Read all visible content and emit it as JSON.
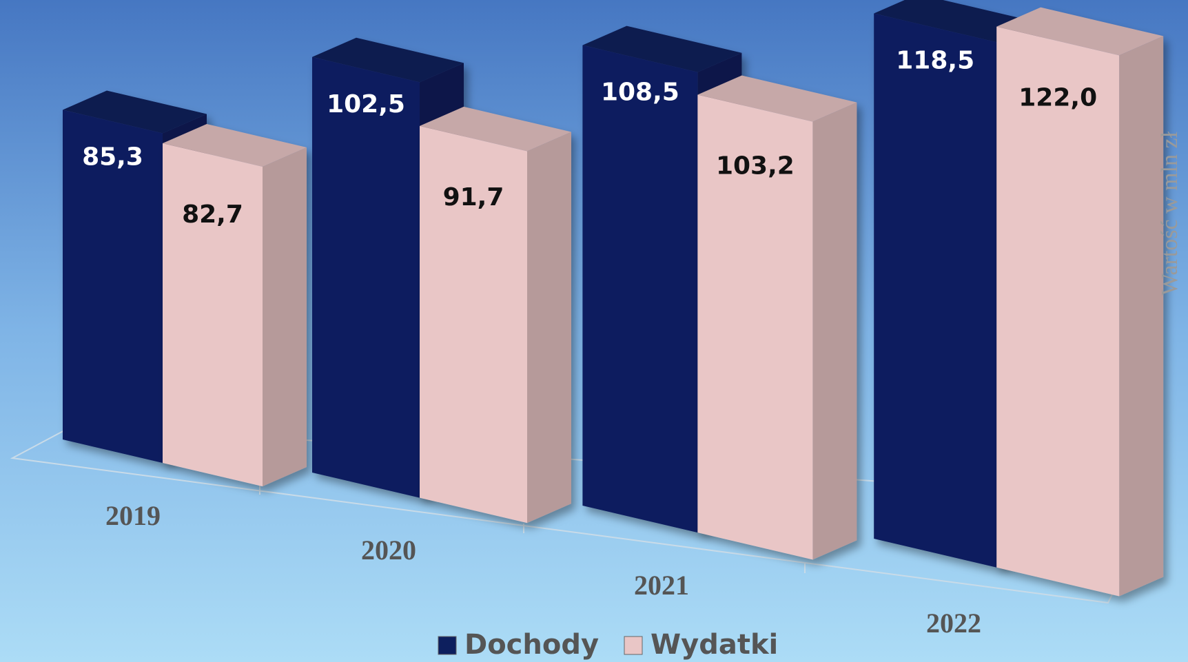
{
  "chart_data": {
    "type": "bar3d",
    "y_axis_label": "Wartość w mln zł",
    "categories": [
      "2019",
      "2020",
      "2021",
      "2022"
    ],
    "series": [
      {
        "name": "Dochody",
        "color": "#0d1f5e",
        "values": [
          85.3,
          102.5,
          108.5,
          118.5
        ],
        "value_labels": [
          "85,3",
          "102,5",
          "108,5",
          "118,5"
        ]
      },
      {
        "name": "Wydatki",
        "color": "#e9c6c6",
        "values": [
          82.7,
          91.7,
          103.2,
          122.0
        ],
        "value_labels": [
          "82,7",
          "91,7",
          "103,2",
          "122,0"
        ]
      }
    ]
  }
}
